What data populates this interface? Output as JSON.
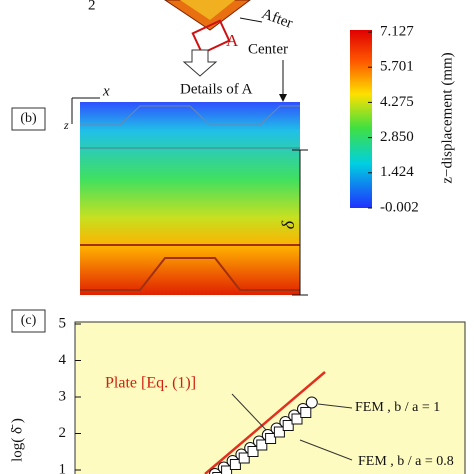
{
  "figure": {
    "top": {
      "index": "2",
      "after": "After",
      "region": "A",
      "center": "Center",
      "details": "Details of A"
    },
    "colorbar": {
      "ticks": [
        "7.127",
        "5.701",
        "4.275",
        "2.850",
        "1.424",
        "-0.002"
      ],
      "title": "z−displacement (mm)"
    },
    "panel_b": {
      "label": "(b)",
      "x_axis": "x",
      "z_axis": "z",
      "delta": "δ"
    },
    "panel_c": {
      "label": "(c)",
      "yticks": [
        "5",
        "4",
        "3",
        "2",
        "1"
      ],
      "ylabel": "log( δ̄ )",
      "plate": "Plate [Eq. (1)]",
      "fem_1": "FEM , b / a = 1",
      "fem_08": "FEM , b / a = 0.8"
    }
  }
}
